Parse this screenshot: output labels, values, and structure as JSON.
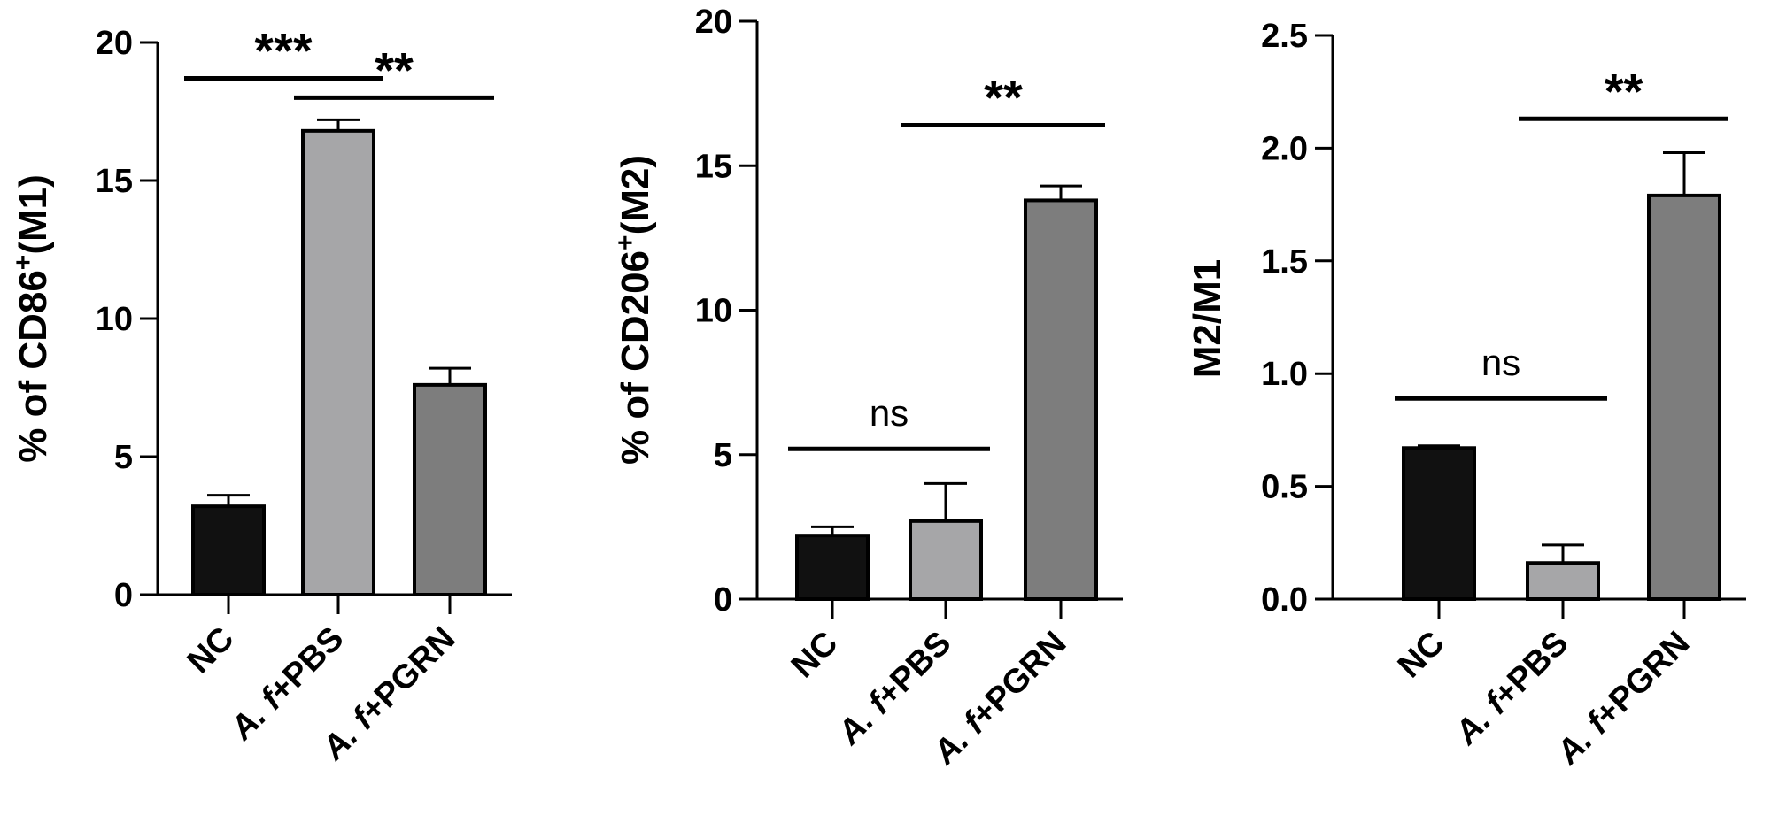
{
  "figure": {
    "panels_count": 3
  },
  "chart_data": [
    {
      "type": "bar",
      "categories": [
        {
          "prefix": "",
          "italic": "",
          "rest": "NC"
        },
        {
          "prefix": "",
          "italic": "A. f",
          "rest": "+PBS"
        },
        {
          "prefix": "",
          "italic": "A. f",
          "rest": "+PGRN"
        }
      ],
      "category_text": [
        "NC",
        "A. f+PBS",
        "A. f+PGRN"
      ],
      "values": [
        3.2,
        16.8,
        7.6
      ],
      "errors": [
        0.4,
        0.4,
        0.6
      ],
      "colors": [
        "#111111",
        "#a6a6a8",
        "#7d7d7d"
      ],
      "ylabel": {
        "pre": "% of CD86",
        "sup": "+",
        "post": "(M1)"
      },
      "ylim": [
        0,
        20
      ],
      "yticks": [
        0,
        5,
        10,
        15,
        20
      ],
      "ytick_labels": [
        "0",
        "5",
        "10",
        "15",
        "20"
      ],
      "significance": [
        {
          "from": 0,
          "to": 1,
          "label": "***",
          "y": 18.7
        },
        {
          "from": 1,
          "to": 2,
          "label": "**",
          "y": 18.0
        }
      ]
    },
    {
      "type": "bar",
      "categories": [
        {
          "prefix": "",
          "italic": "",
          "rest": "NC"
        },
        {
          "prefix": "",
          "italic": "A. f",
          "rest": "+PBS"
        },
        {
          "prefix": "",
          "italic": "A. f",
          "rest": "+PGRN"
        }
      ],
      "category_text": [
        "NC",
        "A. f+PBS",
        "A. f+PGRN"
      ],
      "values": [
        2.2,
        2.7,
        13.8
      ],
      "errors": [
        0.3,
        1.3,
        0.5
      ],
      "colors": [
        "#111111",
        "#a6a6a8",
        "#7d7d7d"
      ],
      "ylabel": {
        "pre": "% of CD206",
        "sup": "+",
        "post": "(M2)"
      },
      "ylim": [
        0,
        20
      ],
      "yticks": [
        0,
        5,
        10,
        15,
        20
      ],
      "ytick_labels": [
        "0",
        "5",
        "10",
        "15",
        "20"
      ],
      "significance": [
        {
          "from": 0,
          "to": 1,
          "label": "ns",
          "y": 5.2
        },
        {
          "from": 1,
          "to": 2,
          "label": "**",
          "y": 16.4
        }
      ]
    },
    {
      "type": "bar",
      "categories": [
        {
          "prefix": "",
          "italic": "",
          "rest": "NC"
        },
        {
          "prefix": "",
          "italic": "A. f",
          "rest": "+PBS"
        },
        {
          "prefix": "",
          "italic": "A. f",
          "rest": "+PGRN"
        }
      ],
      "category_text": [
        "NC",
        "A. f+PBS",
        "A. f+PGRN"
      ],
      "values": [
        0.67,
        0.16,
        1.79
      ],
      "errors": [
        0.01,
        0.08,
        0.19
      ],
      "colors": [
        "#111111",
        "#a6a6a8",
        "#7d7d7d"
      ],
      "ylabel": {
        "pre": "M2/M1",
        "sup": "",
        "post": ""
      },
      "ylim": [
        0,
        2.5
      ],
      "yticks": [
        0,
        0.5,
        1.0,
        1.5,
        2.0,
        2.5
      ],
      "ytick_labels": [
        "0.0",
        "0.5",
        "1.0",
        "1.5",
        "2.0",
        "2.5"
      ],
      "significance": [
        {
          "from": 0,
          "to": 1,
          "label": "ns",
          "y": 0.89
        },
        {
          "from": 1,
          "to": 2,
          "label": "**",
          "y": 2.13
        }
      ]
    }
  ]
}
